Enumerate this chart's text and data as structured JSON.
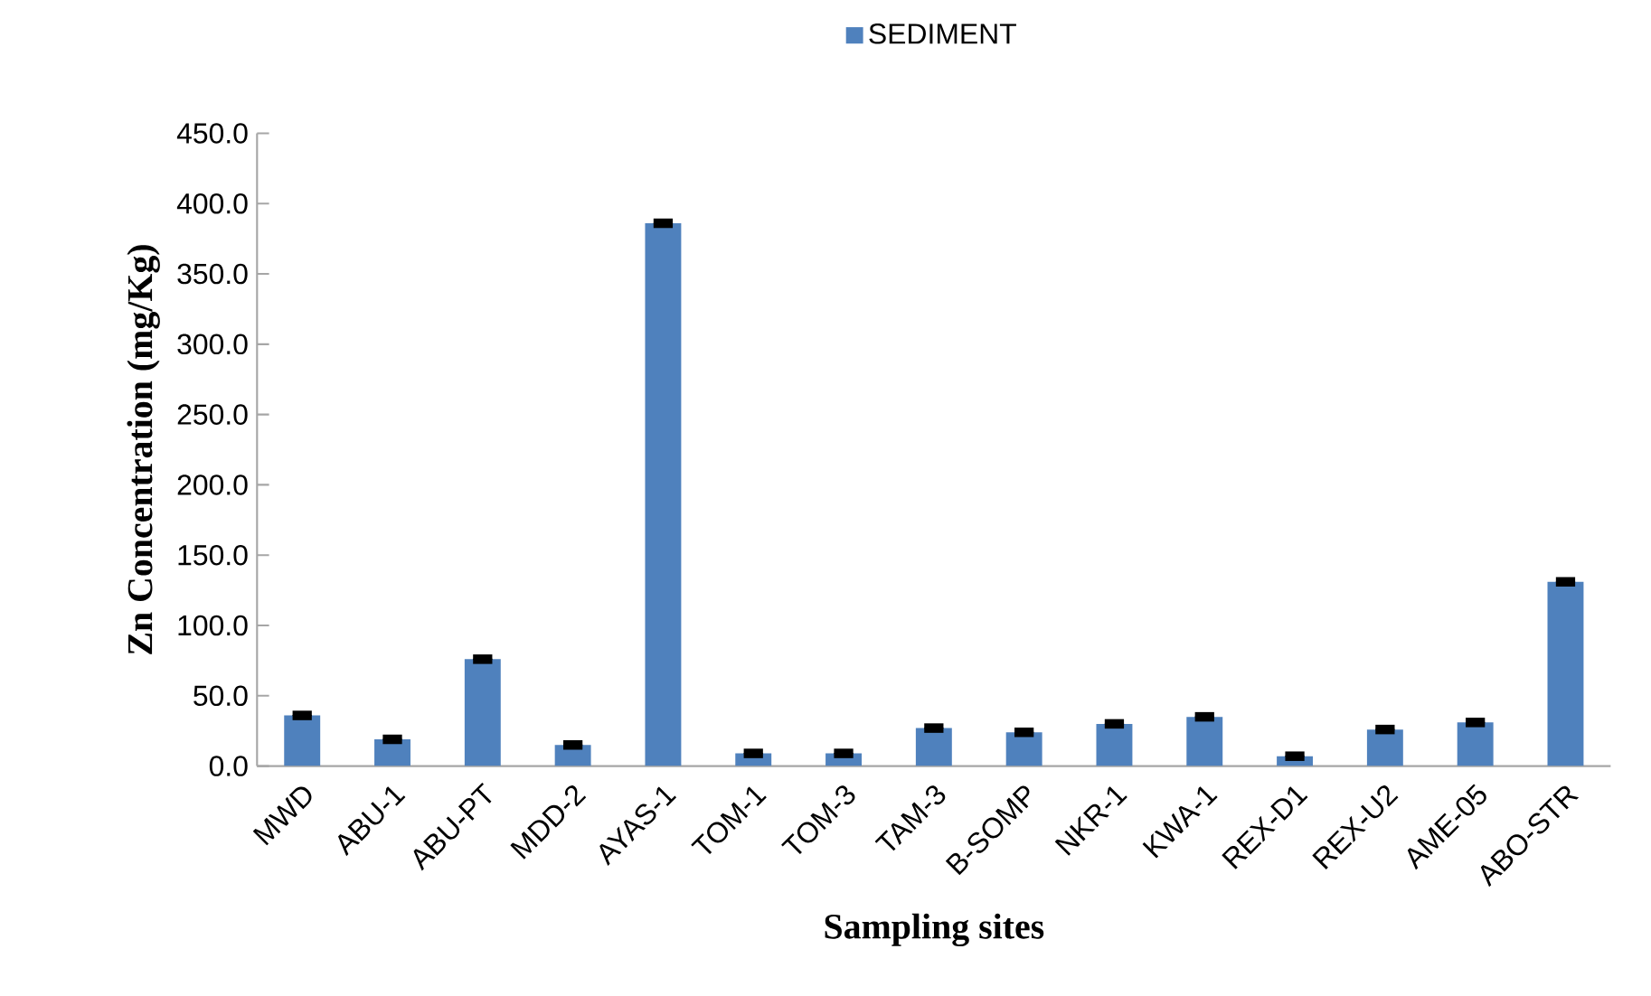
{
  "chart_data": {
    "type": "bar",
    "xlabel": "Sampling sites",
    "ylabel": "Zn Concentration (mg/Kg)",
    "categories": [
      "MWD",
      "ABU-1",
      "ABU-PT",
      "MDD-2",
      "AYAS-1",
      "TOM-1",
      "TOM-3",
      "TAM-3",
      "B-SOMP",
      "NKR-1",
      "KWA-1",
      "REX-D1",
      "REX-U2",
      "AME-05",
      "ABO-STR"
    ],
    "series": [
      {
        "name": "SEDIMENT",
        "color": "#4f81bd",
        "values": [
          36,
          19,
          76,
          15,
          386,
          9,
          9,
          27,
          24,
          30,
          35,
          7,
          26,
          31,
          131
        ],
        "errors": [
          1.5,
          1.5,
          1.5,
          1.5,
          1.5,
          1.5,
          1.5,
          1.5,
          1.5,
          1.5,
          1.5,
          1.5,
          1.5,
          1.5,
          1.5
        ]
      }
    ],
    "ylim": [
      0,
      450
    ],
    "yticks": [
      {
        "value": 0,
        "label": "0.0"
      },
      {
        "value": 50,
        "label": "50.0"
      },
      {
        "value": 100,
        "label": "100.0"
      },
      {
        "value": 150,
        "label": "150.0"
      },
      {
        "value": 200,
        "label": "200.0"
      },
      {
        "value": 250,
        "label": "250.0"
      },
      {
        "value": 300,
        "label": "300.0"
      },
      {
        "value": 350,
        "label": "350.0"
      },
      {
        "value": 400,
        "label": "400.0"
      },
      {
        "value": 450,
        "label": "450.0"
      }
    ],
    "legend": "top",
    "grid": false
  }
}
